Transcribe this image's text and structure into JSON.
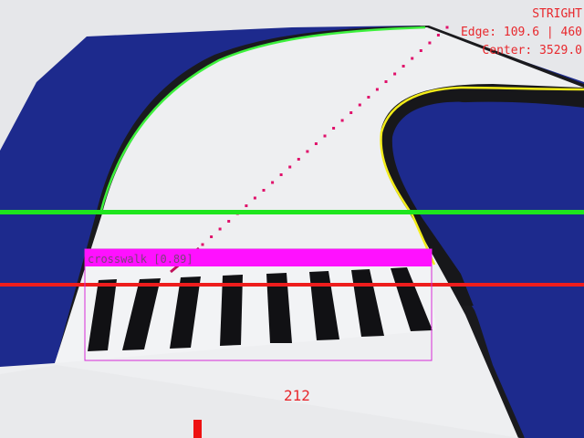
{
  "hud": {
    "mode": "STRIGHT",
    "edge": "Edge: 109.6 | 460",
    "center": "Center: 3529.0",
    "steer_value": "212"
  },
  "detection": {
    "label": "crosswalk [0.89]",
    "box_color": "#ff11ff"
  },
  "colors": {
    "carpet": "#1d2a8d",
    "track": "#eeeff1",
    "track_border": "#1b1b1e",
    "left_edge": "#3df03d",
    "right_edge": "#f2ec1a",
    "reference_line_green": "#1ee51e",
    "reference_line_red": "#ee1d1d",
    "trajectory": "#e0106a"
  }
}
